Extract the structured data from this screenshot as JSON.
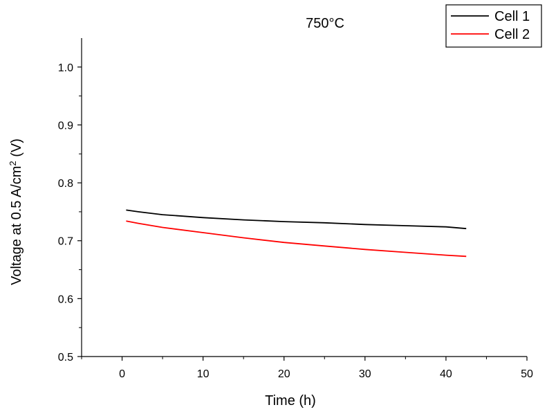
{
  "chart_data": {
    "type": "line",
    "title": "750°C",
    "xlabel": "Time  (h)",
    "ylabel_parts": [
      "Voltage at 0.5 A/cm",
      "2",
      " (V)"
    ],
    "xlim": [
      -5,
      50
    ],
    "ylim": [
      0.5,
      1.05
    ],
    "x_ticks": [
      0,
      10,
      20,
      30,
      40,
      50
    ],
    "y_ticks": [
      0.5,
      0.6,
      0.7,
      0.8,
      0.9,
      1.0
    ],
    "x_tick_labels": [
      "0",
      "10",
      "20",
      "30",
      "40",
      "50"
    ],
    "y_tick_labels": [
      "0.5",
      "0.6",
      "0.7",
      "0.8",
      "0.9",
      "1.0"
    ],
    "grid": false,
    "legend_position": "top-right",
    "series": [
      {
        "name": "Cell 1",
        "color": "#000000",
        "x": [
          0.5,
          2,
          5,
          10,
          15,
          20,
          25,
          30,
          35,
          40,
          42.5
        ],
        "y": [
          0.753,
          0.75,
          0.745,
          0.74,
          0.736,
          0.733,
          0.731,
          0.728,
          0.726,
          0.724,
          0.721
        ]
      },
      {
        "name": "Cell 2",
        "color": "#ff0000",
        "x": [
          0.5,
          2,
          5,
          10,
          15,
          20,
          25,
          30,
          35,
          40,
          42.5
        ],
        "y": [
          0.734,
          0.73,
          0.723,
          0.714,
          0.705,
          0.697,
          0.691,
          0.685,
          0.68,
          0.675,
          0.673
        ]
      }
    ]
  }
}
